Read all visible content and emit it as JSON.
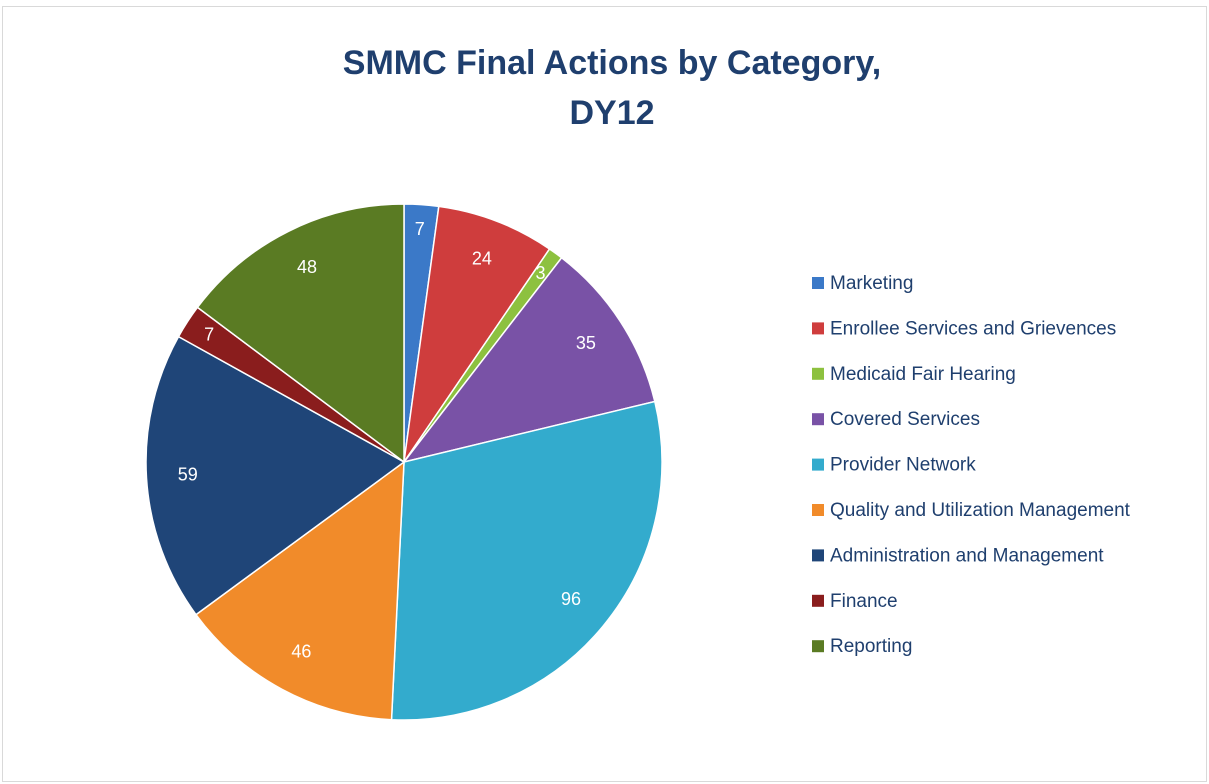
{
  "chart_data": {
    "type": "pie",
    "title": "SMMC Final Actions by Category, DY12",
    "categories": [
      "Marketing",
      "Enrollee Services and Grievences",
      "Medicaid Fair Hearing",
      "Covered Services",
      "Provider Network",
      "Quality and Utilization Management",
      "Administration and Management",
      "Finance",
      "Reporting"
    ],
    "values": [
      7,
      24,
      3,
      35,
      96,
      46,
      59,
      7,
      48
    ],
    "colors": [
      "#3b79c8",
      "#cf3d3d",
      "#8dc13f",
      "#7952a6",
      "#33abcd",
      "#f18b2a",
      "#1f4578",
      "#8a1d1d",
      "#5a7b23"
    ],
    "legend": "right"
  }
}
